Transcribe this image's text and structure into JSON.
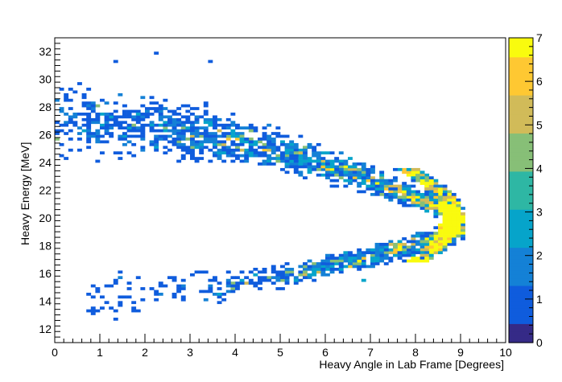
{
  "chart_data": {
    "type": "heatmap",
    "title": "",
    "xlabel": "Heavy Angle in Lab Frame [Degrees]",
    "ylabel": "Heavy Energy [MeV]",
    "xlim": [
      0,
      10
    ],
    "ylim": [
      11,
      33
    ],
    "x_ticks": [
      0,
      1,
      2,
      3,
      4,
      5,
      6,
      7,
      8,
      9,
      10
    ],
    "y_ticks": [
      12,
      14,
      16,
      18,
      20,
      22,
      24,
      26,
      28,
      30,
      32
    ],
    "bin_width_x": 0.1,
    "bin_width_y": 0.2,
    "colorbar": {
      "min": 0,
      "max": 7,
      "ticks": [
        0,
        1,
        2,
        3,
        4,
        5,
        6,
        7
      ],
      "palette": [
        "#352a87",
        "#0f5cdd",
        "#1481d6",
        "#06a4ca",
        "#2eb7a4",
        "#87bf77",
        "#d1bb59",
        "#fec832",
        "#f9fb0e"
      ]
    },
    "band_description": "Two kinematic branches meeting near 9 degrees and 20 MeV; upper branch 24-30 MeV at small angles, lower branch 14-17 MeV",
    "sample_bins": [
      {
        "x": 1.35,
        "y": 12.7,
        "count": 1
      },
      {
        "x": 2.3,
        "y": 31.8,
        "count": 1
      },
      {
        "x": 1.4,
        "y": 31.3,
        "count": 1
      },
      {
        "x": 3.45,
        "y": 31.2,
        "count": 1
      },
      {
        "x": 0.95,
        "y": 14.9,
        "count": 1
      },
      {
        "x": 1.45,
        "y": 16.2,
        "count": 1
      },
      {
        "x": 3.6,
        "y": 14.5,
        "count": 3
      },
      {
        "x": 6.85,
        "y": 15.4,
        "count": 3
      },
      {
        "x": 8.95,
        "y": 19.2,
        "count": 7
      },
      {
        "x": 9.0,
        "y": 20.0,
        "count": 6
      },
      {
        "x": 8.9,
        "y": 18.6,
        "count": 4
      }
    ]
  }
}
